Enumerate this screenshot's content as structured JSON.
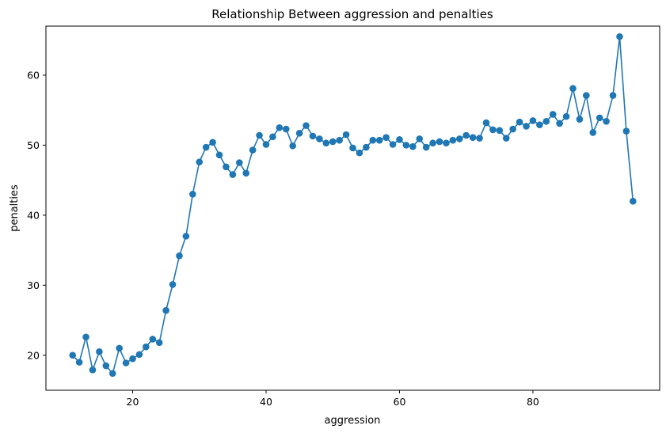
{
  "chart_data": {
    "type": "line",
    "title": "Relationship Between aggression and penalties",
    "xlabel": "aggression",
    "ylabel": "penalties",
    "xlim": [
      7,
      99
    ],
    "ylim": [
      15,
      67
    ],
    "xticks": [
      20,
      40,
      60,
      80
    ],
    "yticks": [
      20,
      30,
      40,
      50,
      60
    ],
    "grid": false,
    "color": "#1f77b4",
    "marker": "circle",
    "series": [
      {
        "x": [
          11,
          12,
          13,
          14,
          15,
          16,
          17,
          18,
          19,
          20,
          21,
          22,
          23,
          24,
          25,
          26,
          27,
          28,
          29,
          30,
          31,
          32,
          33,
          34,
          35,
          36,
          37,
          38,
          39,
          40,
          41,
          42,
          43,
          44,
          45,
          46,
          47,
          48,
          49,
          50,
          51,
          52,
          53,
          54,
          55,
          56,
          57,
          58,
          59,
          60,
          61,
          62,
          63,
          64,
          65,
          66,
          67,
          68,
          69,
          70,
          71,
          72,
          73,
          74,
          75,
          76,
          77,
          78,
          79,
          80,
          81,
          82,
          83,
          84,
          85,
          86,
          87,
          88,
          89,
          90,
          91,
          92,
          93,
          94,
          95
        ],
        "y": [
          20.0,
          19.0,
          22.6,
          17.9,
          20.5,
          18.5,
          17.4,
          21.0,
          18.9,
          19.5,
          20.1,
          21.2,
          22.3,
          21.8,
          26.4,
          30.1,
          34.2,
          37.0,
          43.0,
          47.6,
          49.7,
          50.4,
          48.6,
          46.9,
          45.8,
          47.5,
          46.0,
          49.3,
          51.4,
          50.1,
          51.2,
          52.5,
          52.3,
          49.9,
          51.7,
          52.8,
          51.3,
          50.9,
          50.3,
          50.5,
          50.7,
          51.5,
          49.6,
          48.9,
          49.7,
          50.7,
          50.7,
          51.1,
          50.1,
          50.8,
          50.0,
          49.8,
          50.9,
          49.7,
          50.3,
          50.5,
          50.3,
          50.7,
          50.9,
          51.4,
          51.1,
          51.0,
          53.2,
          52.2,
          52.1,
          51.0,
          52.3,
          53.3,
          52.7,
          53.5,
          52.9,
          53.4,
          54.4,
          53.1,
          54.1,
          58.1,
          53.7,
          57.1,
          51.8,
          53.9,
          53.4,
          57.1,
          65.5,
          52.0,
          42.0
        ]
      }
    ]
  }
}
